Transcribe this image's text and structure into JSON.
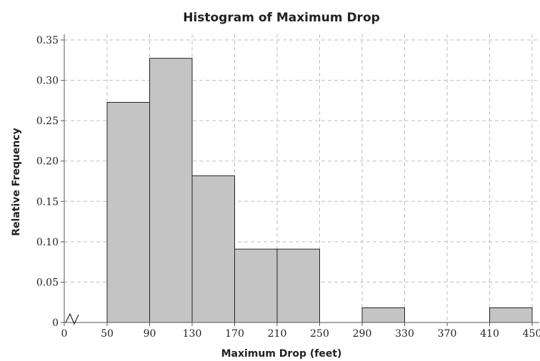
{
  "chart_data": {
    "type": "bar",
    "title": "Histogram of Maximum Drop",
    "xlabel": "Maximum Drop (feet)",
    "ylabel": "Relative Frequency",
    "bins": [
      {
        "start": 50,
        "end": 90,
        "value": 0.2727
      },
      {
        "start": 90,
        "end": 130,
        "value": 0.3273
      },
      {
        "start": 130,
        "end": 170,
        "value": 0.1818
      },
      {
        "start": 170,
        "end": 210,
        "value": 0.0909
      },
      {
        "start": 210,
        "end": 250,
        "value": 0.0909
      },
      {
        "start": 250,
        "end": 290,
        "value": 0
      },
      {
        "start": 290,
        "end": 330,
        "value": 0.0182
      },
      {
        "start": 330,
        "end": 370,
        "value": 0
      },
      {
        "start": 370,
        "end": 410,
        "value": 0
      },
      {
        "start": 410,
        "end": 450,
        "value": 0.0182
      }
    ],
    "x_ticks": [
      0,
      50,
      90,
      130,
      170,
      210,
      250,
      290,
      330,
      370,
      410,
      450
    ],
    "x_tick_labels": [
      "0",
      "50",
      "90",
      "130",
      "170",
      "210",
      "250",
      "290",
      "330",
      "370",
      "410",
      "450"
    ],
    "y_ticks": [
      0,
      0.05,
      0.1,
      0.15,
      0.2,
      0.25,
      0.3,
      0.35
    ],
    "y_tick_labels": [
      "0",
      "0.05",
      "0.10",
      "0.15",
      "0.20",
      "0.25",
      "0.30",
      "0.35"
    ],
    "ylim": [
      0,
      0.35
    ],
    "x_axis_break": true,
    "grid": true,
    "bar_color": "#c4c4c4",
    "edge_color": "#222222"
  }
}
